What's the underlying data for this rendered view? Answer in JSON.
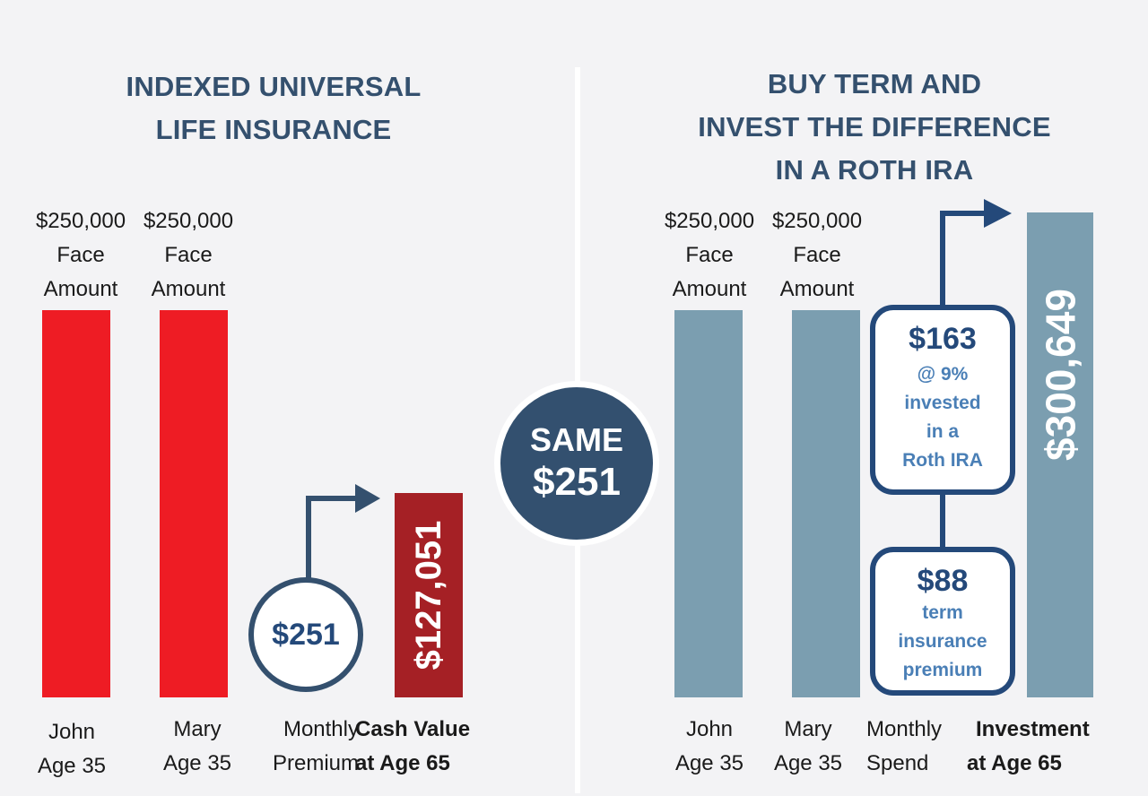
{
  "left_panel": {
    "title_line1": "INDEXED UNIVERSAL",
    "title_line2": "LIFE INSURANCE"
  },
  "right_panel": {
    "title_line1": "BUY TERM AND",
    "title_line2": "INVEST THE DIFFERENCE",
    "title_line3": "IN A ROTH IRA"
  },
  "center_badge": {
    "line1": "SAME",
    "line2": "$251"
  },
  "left_premium_circle": "$251",
  "right_boxes": {
    "investment": {
      "amount": "$163",
      "line1": "@ 9%",
      "line2": "invested",
      "line3": "in a",
      "line4": "Roth IRA"
    },
    "term": {
      "amount": "$88",
      "line1": "term",
      "line2": "insurance",
      "line3": "premium"
    }
  },
  "colors": {
    "iul_bar": "#ee1c24",
    "iul_cash_value_bar": "#a52025",
    "term_bar": "#7b9eb0",
    "title_text": "#34506e",
    "accent_navy": "#24497a"
  },
  "chart_data": [
    {
      "type": "bar",
      "title": "INDEXED UNIVERSAL LIFE INSURANCE",
      "bars": [
        {
          "label_line1": "John",
          "label_line2": "Age 35",
          "top_line1": "$250,000",
          "top_line2": "Face",
          "top_line3": "Amount",
          "value": 250000
        },
        {
          "label_line1": "Mary",
          "label_line2": "Age 35",
          "top_line1": "$250,000",
          "top_line2": "Face",
          "top_line3": "Amount",
          "value": 250000
        },
        {
          "label_line1": "Cash Value",
          "label_line2": "at Age 65",
          "value_label": "$127,051",
          "value": 127051
        }
      ],
      "premium_label_line1": "Monthly",
      "premium_label_line2": "Premium"
    },
    {
      "type": "bar",
      "title": "BUY TERM AND INVEST THE DIFFERENCE IN A ROTH IRA",
      "bars": [
        {
          "label_line1": "John",
          "label_line2": "Age 35",
          "top_line1": "$250,000",
          "top_line2": "Face",
          "top_line3": "Amount",
          "value": 250000
        },
        {
          "label_line1": "Mary",
          "label_line2": "Age 35",
          "top_line1": "$250,000",
          "top_line2": "Face",
          "top_line3": "Amount",
          "value": 250000
        },
        {
          "label_line1": "Investment",
          "label_line2": "at Age 65",
          "value_label": "$300,649",
          "value": 300649
        }
      ],
      "spend_label_line1": "Monthly",
      "spend_label_line2": "Spend"
    }
  ]
}
